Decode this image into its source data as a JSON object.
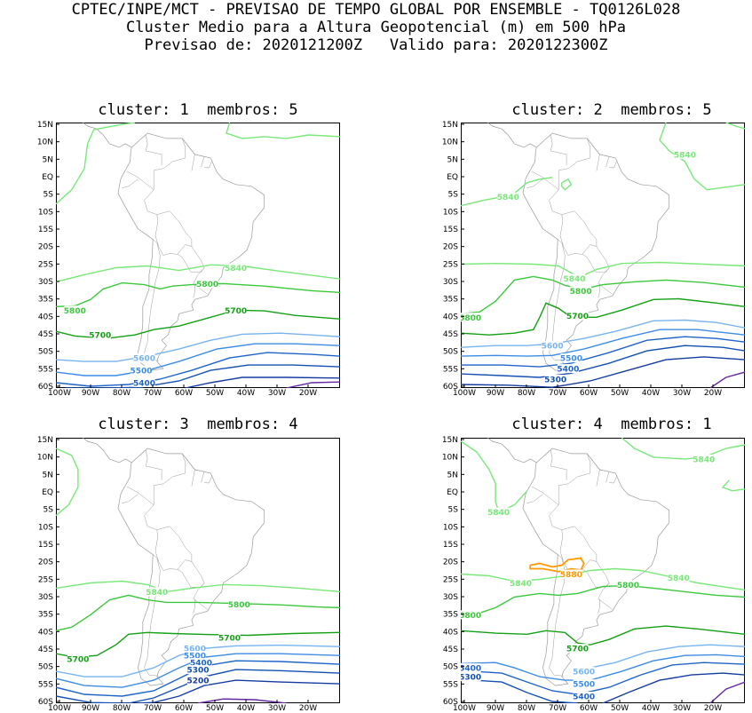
{
  "header": {
    "line1": "CPTEC/INPE/MCT - PREVISAO DE TEMPO GLOBAL POR ENSEMBLE - TQ0126L028",
    "line2": "Cluster Medio para a Altura Geopotencial (m) em 500 hPa",
    "line3": "Previsao de: 2020121200Z   Valido para: 2020122300Z"
  },
  "colors": {
    "c5880": "#ff9900",
    "c5840": "#78e878",
    "c5800": "#3cc83c",
    "c5700": "#14a014",
    "c5600": "#78b4f0",
    "c5500": "#3c8ce6",
    "c5400": "#1e64c8",
    "c5300": "#1450b4",
    "c5200": "#143ca0",
    "cPurple": "#6428a0",
    "coast": "#9a9a9a"
  },
  "axes": {
    "y_ticks": [
      "15N",
      "10N",
      "5N",
      "EQ",
      "5S",
      "10S",
      "15S",
      "20S",
      "25S",
      "30S",
      "35S",
      "40S",
      "45S",
      "50S",
      "55S",
      "60S"
    ],
    "x_ticks": [
      "100W",
      "90W",
      "80W",
      "70W",
      "60W",
      "50W",
      "40W",
      "30W",
      "20W"
    ]
  },
  "panels": [
    {
      "title": "cluster: 1  membros: 5",
      "contour_labels": [
        {
          "text": "5840",
          "lon": -44,
          "lat": -26,
          "level": "5840"
        },
        {
          "text": "5800",
          "lon": -53,
          "lat": -30.5,
          "level": "5800"
        },
        {
          "text": "5800",
          "lon": -95,
          "lat": -38,
          "level": "5800"
        },
        {
          "text": "5700",
          "lon": -44,
          "lat": -38,
          "level": "5700"
        },
        {
          "text": "5700",
          "lon": -87,
          "lat": -45,
          "level": "5700"
        },
        {
          "text": "5600",
          "lon": -73,
          "lat": -51.5,
          "level": "5600"
        },
        {
          "text": "5500",
          "lon": -74,
          "lat": -55,
          "level": "5500"
        },
        {
          "text": "5400",
          "lon": -73,
          "lat": -58.5,
          "level": "5400"
        }
      ]
    },
    {
      "title": "cluster: 2  membros: 5",
      "contour_labels": [
        {
          "text": "5840",
          "lon": -30,
          "lat": 6,
          "level": "5840"
        },
        {
          "text": "5840",
          "lon": -86,
          "lat": -6,
          "level": "5840"
        },
        {
          "text": "5840",
          "lon": -65,
          "lat": -29,
          "level": "5840"
        },
        {
          "text": "5800",
          "lon": -63,
          "lat": -32.5,
          "level": "5800"
        },
        {
          "text": "5800",
          "lon": -98,
          "lat": -40,
          "level": "5800"
        },
        {
          "text": "5700",
          "lon": -64,
          "lat": -39.5,
          "level": "5700"
        },
        {
          "text": "5600",
          "lon": -72,
          "lat": -48,
          "level": "5600"
        },
        {
          "text": "5500",
          "lon": -66,
          "lat": -51.5,
          "level": "5500"
        },
        {
          "text": "5400",
          "lon": -67,
          "lat": -54.5,
          "level": "5400"
        },
        {
          "text": "5300",
          "lon": -71,
          "lat": -57.5,
          "level": "5300"
        }
      ]
    },
    {
      "title": "cluster: 3  membros: 4",
      "contour_labels": [
        {
          "text": "5840",
          "lon": -69,
          "lat": -28.5,
          "level": "5840"
        },
        {
          "text": "5800",
          "lon": -43,
          "lat": -32,
          "level": "5800"
        },
        {
          "text": "5700",
          "lon": -46,
          "lat": -41.5,
          "level": "5700"
        },
        {
          "text": "5700",
          "lon": -94,
          "lat": -47.5,
          "level": "5700"
        },
        {
          "text": "5600",
          "lon": -57,
          "lat": -44.5,
          "level": "5600"
        },
        {
          "text": "5500",
          "lon": -57,
          "lat": -46.5,
          "level": "5500"
        },
        {
          "text": "5400",
          "lon": -55,
          "lat": -48.5,
          "level": "5400"
        },
        {
          "text": "5300",
          "lon": -56,
          "lat": -50.5,
          "level": "5300"
        },
        {
          "text": "5200",
          "lon": -56,
          "lat": -53.5,
          "level": "5200"
        }
      ]
    },
    {
      "title": "cluster: 4  membros: 1",
      "contour_labels": [
        {
          "text": "5840",
          "lon": -24,
          "lat": 9,
          "level": "5840"
        },
        {
          "text": "5840",
          "lon": -89,
          "lat": -6,
          "level": "5840"
        },
        {
          "text": "5840",
          "lon": -82,
          "lat": -26,
          "level": "5840"
        },
        {
          "text": "5880",
          "lon": -66,
          "lat": -23.5,
          "level": "5880"
        },
        {
          "text": "5840",
          "lon": -32,
          "lat": -24.5,
          "level": "5840"
        },
        {
          "text": "5800",
          "lon": -48,
          "lat": -26.5,
          "level": "5800"
        },
        {
          "text": "5800",
          "lon": -98,
          "lat": -35,
          "level": "5800"
        },
        {
          "text": "5700",
          "lon": -64,
          "lat": -44.5,
          "level": "5700"
        },
        {
          "text": "5600",
          "lon": -62,
          "lat": -51,
          "level": "5600"
        },
        {
          "text": "5500",
          "lon": -62,
          "lat": -54.5,
          "level": "5500"
        },
        {
          "text": "5400",
          "lon": -98,
          "lat": -50,
          "level": "5400"
        },
        {
          "text": "5400",
          "lon": -62,
          "lat": -58,
          "level": "5400"
        },
        {
          "text": "5300",
          "lon": -98,
          "lat": -52.5,
          "level": "5300"
        }
      ]
    }
  ]
}
